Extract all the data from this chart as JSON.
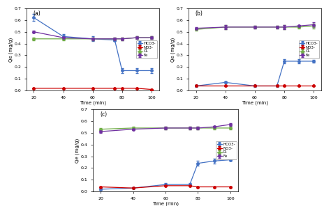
{
  "time": [
    20,
    40,
    60,
    75,
    80,
    90,
    100
  ],
  "subplot_a": {
    "label": "(a)",
    "HCO3": [
      0.62,
      0.46,
      0.44,
      0.43,
      0.17,
      0.17,
      0.17
    ],
    "NO3": [
      0.02,
      0.02,
      0.02,
      0.02,
      0.02,
      0.02,
      0.01
    ],
    "Cl": [
      0.44,
      0.44,
      0.44,
      0.44,
      0.44,
      0.45,
      0.45
    ],
    "Fe": [
      0.5,
      0.45,
      0.44,
      0.44,
      0.44,
      0.45,
      0.45
    ],
    "HCO3_err": [
      0.03,
      0.02,
      0.02,
      0.01,
      0.02,
      0.02,
      0.02
    ],
    "NO3_err": [
      0.002,
      0.002,
      0.002,
      0.002,
      0.002,
      0.002,
      0.002
    ],
    "Cl_err": [
      0.01,
      0.01,
      0.01,
      0.01,
      0.01,
      0.01,
      0.01
    ],
    "Fe_err": [
      0.01,
      0.01,
      0.01,
      0.01,
      0.01,
      0.01,
      0.01
    ]
  },
  "subplot_b": {
    "label": "(b)",
    "HCO3": [
      0.04,
      0.07,
      0.04,
      0.04,
      0.25,
      0.25,
      0.25
    ],
    "NO3": [
      0.04,
      0.04,
      0.04,
      0.04,
      0.04,
      0.04,
      0.04
    ],
    "Cl": [
      0.52,
      0.54,
      0.54,
      0.54,
      0.54,
      0.54,
      0.55
    ],
    "Fe": [
      0.53,
      0.54,
      0.54,
      0.54,
      0.54,
      0.55,
      0.56
    ],
    "HCO3_err": [
      0.01,
      0.01,
      0.01,
      0.01,
      0.02,
      0.02,
      0.01
    ],
    "NO3_err": [
      0.002,
      0.002,
      0.002,
      0.002,
      0.002,
      0.002,
      0.002
    ],
    "Cl_err": [
      0.01,
      0.02,
      0.01,
      0.01,
      0.02,
      0.01,
      0.02
    ],
    "Fe_err": [
      0.01,
      0.02,
      0.01,
      0.01,
      0.02,
      0.01,
      0.02
    ]
  },
  "subplot_c": {
    "label": "(c)",
    "HCO3": [
      0.02,
      0.03,
      0.06,
      0.06,
      0.24,
      0.26,
      0.27
    ],
    "NO3": [
      0.04,
      0.03,
      0.05,
      0.05,
      0.04,
      0.04,
      0.04
    ],
    "Cl": [
      0.53,
      0.54,
      0.54,
      0.54,
      0.54,
      0.54,
      0.54
    ],
    "Fe": [
      0.51,
      0.53,
      0.54,
      0.54,
      0.54,
      0.55,
      0.57
    ],
    "HCO3_err": [
      0.005,
      0.005,
      0.01,
      0.01,
      0.02,
      0.02,
      0.01
    ],
    "NO3_err": [
      0.002,
      0.002,
      0.002,
      0.002,
      0.002,
      0.002,
      0.002
    ],
    "Cl_err": [
      0.01,
      0.01,
      0.01,
      0.01,
      0.01,
      0.01,
      0.01
    ],
    "Fe_err": [
      0.01,
      0.01,
      0.01,
      0.01,
      0.01,
      0.01,
      0.01
    ]
  },
  "colors": {
    "HCO3": "#4472C4",
    "NO3": "#CC0000",
    "Cl": "#70AD47",
    "Fe": "#7030A0"
  },
  "legend_labels": [
    "HCO3-",
    "NO3-",
    "Cl-",
    "Fe"
  ],
  "xlabel": "Time (min)",
  "ylabel": "Qe (mg/g)",
  "ylim": [
    0.0,
    0.7
  ],
  "yticks": [
    0.0,
    0.1,
    0.2,
    0.3,
    0.4,
    0.5,
    0.6,
    0.7
  ],
  "xticks": [
    20,
    40,
    60,
    80,
    100
  ],
  "marker": "o",
  "markersize": 2.5,
  "linewidth": 0.9,
  "elinewidth": 0.6,
  "capsize": 1.5,
  "tick_labelsize": 4.5,
  "label_fontsize": 5,
  "legend_fontsize": 4,
  "panel_label_fontsize": 5.5
}
